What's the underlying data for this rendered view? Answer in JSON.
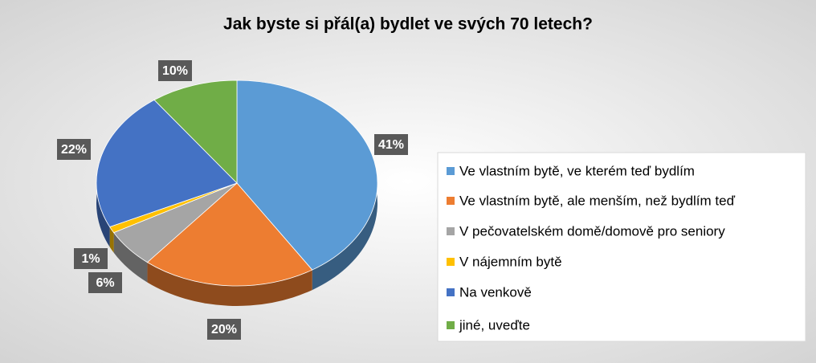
{
  "chart_data": {
    "type": "pie",
    "title": "Jak byste si přál(a) bydlet ve svých 70 letech?",
    "categories": [
      "Ve vlastním bytě, ve kterém teď bydlím",
      "Ve vlastním bytě, ale menším, než bydlím teď",
      "V pečovatelském domě/domově pro seniory",
      "V nájemním bytě",
      "Na venkově",
      "jiné, uveďte"
    ],
    "values": [
      41,
      20,
      6,
      1,
      22,
      10
    ],
    "value_labels": [
      "41%",
      "20%",
      "6%",
      "1%",
      "22%",
      "10%"
    ],
    "colors": [
      "#5b9bd5",
      "#ed7d31",
      "#a5a5a5",
      "#ffc000",
      "#4472c4",
      "#70ad47"
    ],
    "legend": "right"
  }
}
